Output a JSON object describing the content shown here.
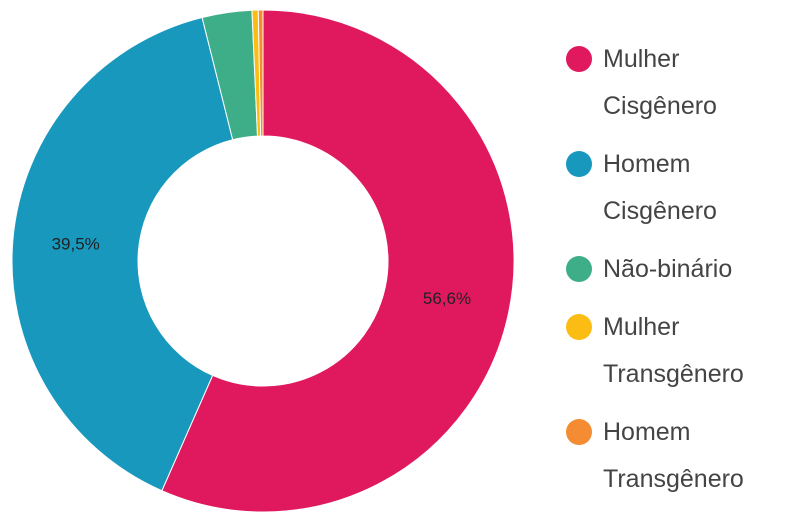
{
  "chart_data": {
    "type": "donut",
    "categories": [
      "Mulher Cisgênero",
      "Homem Cisgênero",
      "Não-binário",
      "Mulher Transgênero",
      "Homem Transgênero"
    ],
    "values": [
      56.6,
      39.5,
      3.2,
      0.4,
      0.3
    ],
    "value_labels": [
      "56,6%",
      "39,5%",
      null,
      null,
      null
    ],
    "colors": [
      "#e0195f",
      "#1898bd",
      "#3dae88",
      "#fbbd14",
      "#f58b32"
    ],
    "legend": "right"
  }
}
